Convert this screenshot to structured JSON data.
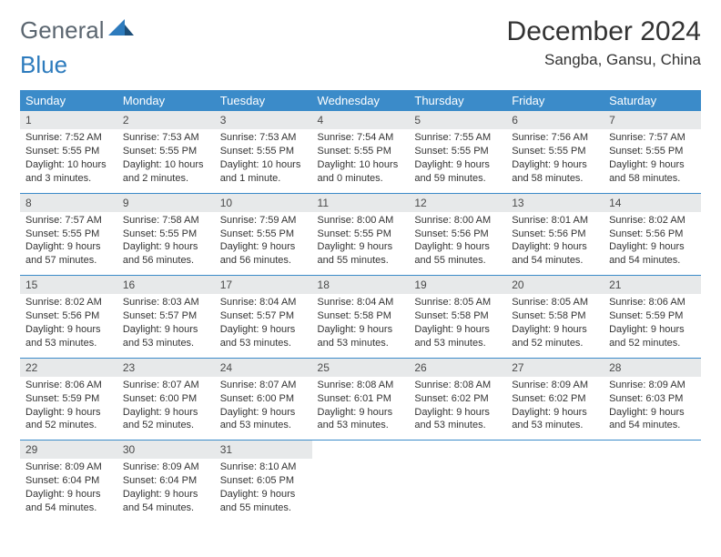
{
  "brand": {
    "word1": "General",
    "word2": "Blue"
  },
  "title": "December 2024",
  "location": "Sangba, Gansu, China",
  "colors": {
    "header_bg": "#3b8bc9",
    "header_text": "#ffffff",
    "daynum_bg": "#e7e9ea",
    "rule": "#3b8bc9",
    "logo_gray": "#5b6670",
    "logo_blue": "#2d7bbd"
  },
  "daysOfWeek": [
    "Sunday",
    "Monday",
    "Tuesday",
    "Wednesday",
    "Thursday",
    "Friday",
    "Saturday"
  ],
  "weeks": [
    [
      {
        "n": "1",
        "sr": "Sunrise: 7:52 AM",
        "ss": "Sunset: 5:55 PM",
        "d1": "Daylight: 10 hours",
        "d2": "and 3 minutes."
      },
      {
        "n": "2",
        "sr": "Sunrise: 7:53 AM",
        "ss": "Sunset: 5:55 PM",
        "d1": "Daylight: 10 hours",
        "d2": "and 2 minutes."
      },
      {
        "n": "3",
        "sr": "Sunrise: 7:53 AM",
        "ss": "Sunset: 5:55 PM",
        "d1": "Daylight: 10 hours",
        "d2": "and 1 minute."
      },
      {
        "n": "4",
        "sr": "Sunrise: 7:54 AM",
        "ss": "Sunset: 5:55 PM",
        "d1": "Daylight: 10 hours",
        "d2": "and 0 minutes."
      },
      {
        "n": "5",
        "sr": "Sunrise: 7:55 AM",
        "ss": "Sunset: 5:55 PM",
        "d1": "Daylight: 9 hours",
        "d2": "and 59 minutes."
      },
      {
        "n": "6",
        "sr": "Sunrise: 7:56 AM",
        "ss": "Sunset: 5:55 PM",
        "d1": "Daylight: 9 hours",
        "d2": "and 58 minutes."
      },
      {
        "n": "7",
        "sr": "Sunrise: 7:57 AM",
        "ss": "Sunset: 5:55 PM",
        "d1": "Daylight: 9 hours",
        "d2": "and 58 minutes."
      }
    ],
    [
      {
        "n": "8",
        "sr": "Sunrise: 7:57 AM",
        "ss": "Sunset: 5:55 PM",
        "d1": "Daylight: 9 hours",
        "d2": "and 57 minutes."
      },
      {
        "n": "9",
        "sr": "Sunrise: 7:58 AM",
        "ss": "Sunset: 5:55 PM",
        "d1": "Daylight: 9 hours",
        "d2": "and 56 minutes."
      },
      {
        "n": "10",
        "sr": "Sunrise: 7:59 AM",
        "ss": "Sunset: 5:55 PM",
        "d1": "Daylight: 9 hours",
        "d2": "and 56 minutes."
      },
      {
        "n": "11",
        "sr": "Sunrise: 8:00 AM",
        "ss": "Sunset: 5:55 PM",
        "d1": "Daylight: 9 hours",
        "d2": "and 55 minutes."
      },
      {
        "n": "12",
        "sr": "Sunrise: 8:00 AM",
        "ss": "Sunset: 5:56 PM",
        "d1": "Daylight: 9 hours",
        "d2": "and 55 minutes."
      },
      {
        "n": "13",
        "sr": "Sunrise: 8:01 AM",
        "ss": "Sunset: 5:56 PM",
        "d1": "Daylight: 9 hours",
        "d2": "and 54 minutes."
      },
      {
        "n": "14",
        "sr": "Sunrise: 8:02 AM",
        "ss": "Sunset: 5:56 PM",
        "d1": "Daylight: 9 hours",
        "d2": "and 54 minutes."
      }
    ],
    [
      {
        "n": "15",
        "sr": "Sunrise: 8:02 AM",
        "ss": "Sunset: 5:56 PM",
        "d1": "Daylight: 9 hours",
        "d2": "and 53 minutes."
      },
      {
        "n": "16",
        "sr": "Sunrise: 8:03 AM",
        "ss": "Sunset: 5:57 PM",
        "d1": "Daylight: 9 hours",
        "d2": "and 53 minutes."
      },
      {
        "n": "17",
        "sr": "Sunrise: 8:04 AM",
        "ss": "Sunset: 5:57 PM",
        "d1": "Daylight: 9 hours",
        "d2": "and 53 minutes."
      },
      {
        "n": "18",
        "sr": "Sunrise: 8:04 AM",
        "ss": "Sunset: 5:58 PM",
        "d1": "Daylight: 9 hours",
        "d2": "and 53 minutes."
      },
      {
        "n": "19",
        "sr": "Sunrise: 8:05 AM",
        "ss": "Sunset: 5:58 PM",
        "d1": "Daylight: 9 hours",
        "d2": "and 53 minutes."
      },
      {
        "n": "20",
        "sr": "Sunrise: 8:05 AM",
        "ss": "Sunset: 5:58 PM",
        "d1": "Daylight: 9 hours",
        "d2": "and 52 minutes."
      },
      {
        "n": "21",
        "sr": "Sunrise: 8:06 AM",
        "ss": "Sunset: 5:59 PM",
        "d1": "Daylight: 9 hours",
        "d2": "and 52 minutes."
      }
    ],
    [
      {
        "n": "22",
        "sr": "Sunrise: 8:06 AM",
        "ss": "Sunset: 5:59 PM",
        "d1": "Daylight: 9 hours",
        "d2": "and 52 minutes."
      },
      {
        "n": "23",
        "sr": "Sunrise: 8:07 AM",
        "ss": "Sunset: 6:00 PM",
        "d1": "Daylight: 9 hours",
        "d2": "and 52 minutes."
      },
      {
        "n": "24",
        "sr": "Sunrise: 8:07 AM",
        "ss": "Sunset: 6:00 PM",
        "d1": "Daylight: 9 hours",
        "d2": "and 53 minutes."
      },
      {
        "n": "25",
        "sr": "Sunrise: 8:08 AM",
        "ss": "Sunset: 6:01 PM",
        "d1": "Daylight: 9 hours",
        "d2": "and 53 minutes."
      },
      {
        "n": "26",
        "sr": "Sunrise: 8:08 AM",
        "ss": "Sunset: 6:02 PM",
        "d1": "Daylight: 9 hours",
        "d2": "and 53 minutes."
      },
      {
        "n": "27",
        "sr": "Sunrise: 8:09 AM",
        "ss": "Sunset: 6:02 PM",
        "d1": "Daylight: 9 hours",
        "d2": "and 53 minutes."
      },
      {
        "n": "28",
        "sr": "Sunrise: 8:09 AM",
        "ss": "Sunset: 6:03 PM",
        "d1": "Daylight: 9 hours",
        "d2": "and 54 minutes."
      }
    ],
    [
      {
        "n": "29",
        "sr": "Sunrise: 8:09 AM",
        "ss": "Sunset: 6:04 PM",
        "d1": "Daylight: 9 hours",
        "d2": "and 54 minutes."
      },
      {
        "n": "30",
        "sr": "Sunrise: 8:09 AM",
        "ss": "Sunset: 6:04 PM",
        "d1": "Daylight: 9 hours",
        "d2": "and 54 minutes."
      },
      {
        "n": "31",
        "sr": "Sunrise: 8:10 AM",
        "ss": "Sunset: 6:05 PM",
        "d1": "Daylight: 9 hours",
        "d2": "and 55 minutes."
      },
      {
        "empty": true
      },
      {
        "empty": true
      },
      {
        "empty": true
      },
      {
        "empty": true
      }
    ]
  ]
}
